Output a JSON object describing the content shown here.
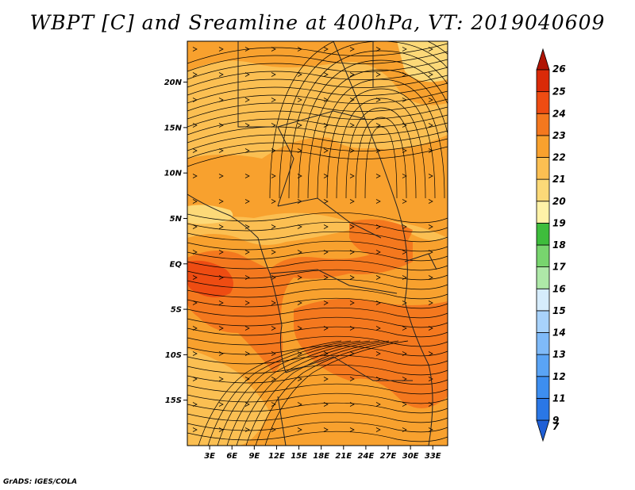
{
  "title": "WBPT [C] and Sreamline at 400hPa, VT: 2019040609",
  "credit": "GrADS: IGES/COLA",
  "map": {
    "lon_range": [
      0,
      35
    ],
    "lat_range": [
      -20,
      24.5
    ],
    "lon_ticks": [
      "3E",
      "6E",
      "9E",
      "12E",
      "15E",
      "18E",
      "21E",
      "24E",
      "27E",
      "30E",
      "33E"
    ],
    "lat_ticks": [
      "20N",
      "15N",
      "10N",
      "5N",
      "EQ",
      "5S",
      "10S",
      "15S"
    ],
    "field": "WBPT",
    "streamlines": true
  },
  "colorbar": {
    "labels": [
      "7",
      "9",
      "11",
      "12",
      "13",
      "14",
      "15",
      "16",
      "17",
      "18",
      "19",
      "20",
      "21",
      "22",
      "23",
      "24",
      "25",
      "26"
    ],
    "colors": [
      "#1f5fd6",
      "#2a77e6",
      "#3d8ef0",
      "#5aa4f5",
      "#7fbaf8",
      "#a8d2fb",
      "#d6ecfc",
      "#aee8a8",
      "#78d46e",
      "#3ebd3c",
      "#fff2a8",
      "#fcd978",
      "#fbbf52",
      "#f8a12e",
      "#f4781e",
      "#ee4c12",
      "#da2a08",
      "#b01404"
    ]
  }
}
